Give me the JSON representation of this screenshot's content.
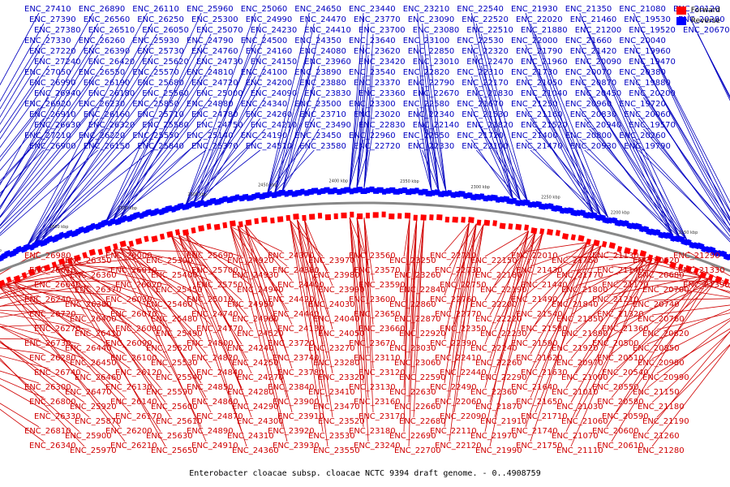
{
  "caption": "Enterobacter cloacae subsp. cloacae NCTC 9394 draft genome. - 0..4908759",
  "legend": [
    {
      "name": "Forward",
      "color": "#ff0000"
    },
    {
      "name": "Reverse",
      "color": "#0000ff"
    }
  ],
  "ticks": [
    "2000 kbp",
    "2050 kbp",
    "2100 kbp",
    "2150 kbp",
    "2200 kbp",
    "2250 kbp",
    "2300 kbp",
    "2350 kbp",
    "2400 kbp",
    "2450 kbp",
    "2500 kbp",
    "2550 kbp",
    "2600 kbp",
    "2650 kbp",
    "2700 kbp",
    "2750 kbp"
  ],
  "reverse_labels": [
    "ENC_27410",
    "ENC_27390",
    "ENC_27380",
    "ENC_27330",
    "ENC_27220",
    "ENC_27240",
    "ENC_27050",
    "ENC_26990",
    "ENC_26940",
    "ENC_26920",
    "ENC_26910",
    "ENC_26630",
    "ENC_27210",
    "ENC_26900",
    "ENC_26890",
    "ENC_26560",
    "ENC_26510",
    "ENC_26260",
    "ENC_26390",
    "ENC_26420",
    "ENC_26550",
    "ENC_26190",
    "ENC_26180",
    "ENC_26230",
    "ENC_26160",
    "ENC_26320",
    "ENC_26220",
    "ENC_26150",
    "ENC_26110",
    "ENC_26250",
    "ENC_26050",
    "ENC_25930",
    "ENC_25730",
    "ENC_25620",
    "ENC_25570",
    "ENC_25680",
    "ENC_25560",
    "ENC_25850",
    "ENC_25710",
    "ENC_25580",
    "ENC_25550",
    "ENC_25840",
    "ENC_25960",
    "ENC_25300",
    "ENC_25070",
    "ENC_24790",
    "ENC_24760",
    "ENC_24730",
    "ENC_24810",
    "ENC_24720",
    "ENC_25000",
    "ENC_24880",
    "ENC_24780",
    "ENC_24750",
    "ENC_25140",
    "ENC_25370",
    "ENC_25060",
    "ENC_24990",
    "ENC_24230",
    "ENC_24500",
    "ENC_24160",
    "ENC_24150",
    "ENC_24100",
    "ENC_24200",
    "ENC_24090",
    "ENC_24340",
    "ENC_24260",
    "ENC_24210",
    "ENC_24190",
    "ENC_24510",
    "ENC_24650",
    "ENC_24470",
    "ENC_24410",
    "ENC_24350",
    "ENC_24080",
    "ENC_23960",
    "ENC_23890",
    "ENC_23880",
    "ENC_23830",
    "ENC_23500",
    "ENC_23710",
    "ENC_23490",
    "ENC_23450",
    "ENC_23580",
    "ENC_23440",
    "ENC_23770",
    "ENC_23700",
    "ENC_23640",
    "ENC_23620",
    "ENC_23420",
    "ENC_23540",
    "ENC_23370",
    "ENC_23360",
    "ENC_23300",
    "ENC_23020",
    "ENC_22830",
    "ENC_22960",
    "ENC_22720",
    "ENC_23210",
    "ENC_23090",
    "ENC_23080",
    "ENC_23100",
    "ENC_22850",
    "ENC_23010",
    "ENC_22820",
    "ENC_22790",
    "ENC_22670",
    "ENC_22580",
    "ENC_22340",
    "ENC_22140",
    "ENC_22550",
    "ENC_22330",
    "ENC_22540",
    "ENC_22520",
    "ENC_22510",
    "ENC_22530",
    "ENC_22320",
    "ENC_22470",
    "ENC_22310",
    "ENC_22170",
    "ENC_21830",
    "ENC_21670",
    "ENC_21530",
    "ENC_21820",
    "ENC_21720",
    "ENC_22100",
    "ENC_21930",
    "ENC_22020",
    "ENC_21880",
    "ENC_22000",
    "ENC_21790",
    "ENC_21960",
    "ENC_21730",
    "ENC_21050",
    "ENC_21040",
    "ENC_21250",
    "ENC_21160",
    "ENC_21520",
    "ENC_21400",
    "ENC_21470",
    "ENC_21350",
    "ENC_21460",
    "ENC_21200",
    "ENC_21660",
    "ENC_21420",
    "ENC_20090",
    "ENC_20070",
    "ENC_20870",
    "ENC_20450",
    "ENC_20960",
    "ENC_20830",
    "ENC_20940",
    "ENC_20800",
    "ENC_20930",
    "ENC_21080",
    "ENC_19530",
    "ENC_19520",
    "ENC_20040",
    "ENC_19960",
    "ENC_19470",
    "ENC_20380",
    "ENC_19880",
    "ENC_20200",
    "ENC_19720",
    "ENC_20060",
    "ENC_19570",
    "ENC_20260",
    "ENC_19790",
    "ENC_20120",
    "ENC_20280",
    "ENC_20670"
  ],
  "forward_labels": [
    "ENC_26980",
    "ENC_26610",
    "ENC_26640",
    "ENC_26240",
    "ENC_26720",
    "ENC_26270",
    "ENC_26730",
    "ENC_26280",
    "ENC_26740",
    "ENC_26300",
    "ENC_26800",
    "ENC_26330",
    "ENC_26810",
    "ENC_26340",
    "ENC_26350",
    "ENC_26360",
    "ENC_26370",
    "ENC_26380",
    "ENC_26400",
    "ENC_26410",
    "ENC_26440",
    "ENC_26450",
    "ENC_26460",
    "ENC_26470",
    "ENC_25920",
    "ENC_25870",
    "ENC_25900",
    "ENC_25970",
    "ENC_26000",
    "ENC_26010",
    "ENC_26020",
    "ENC_26030",
    "ENC_26070",
    "ENC_26080",
    "ENC_26090",
    "ENC_26100",
    "ENC_26120",
    "ENC_26130",
    "ENC_26140",
    "ENC_26170",
    "ENC_26200",
    "ENC_26210",
    "ENC_25390",
    "ENC_25400",
    "ENC_25450",
    "ENC_25460",
    "ENC_25480",
    "ENC_25490",
    "ENC_25520",
    "ENC_25530",
    "ENC_25540",
    "ENC_25590",
    "ENC_25600",
    "ENC_25610",
    "ENC_25630",
    "ENC_25650",
    "ENC_25690",
    "ENC_25700",
    "ENC_25750",
    "ENC_25010",
    "ENC_24740",
    "ENC_24770",
    "ENC_24800",
    "ENC_24820",
    "ENC_24840",
    "ENC_24850",
    "ENC_24860",
    "ENC_24870",
    "ENC_24890",
    "ENC_24910",
    "ENC_24920",
    "ENC_24930",
    "ENC_24940",
    "ENC_24950",
    "ENC_24960",
    "ENC_24520",
    "ENC_24240",
    "ENC_24250",
    "ENC_24270",
    "ENC_24280",
    "ENC_24290",
    "ENC_24300",
    "ENC_24310",
    "ENC_24360",
    "ENC_24370",
    "ENC_24380",
    "ENC_24400",
    "ENC_24420",
    "ENC_24440",
    "ENC_24130",
    "ENC_23720",
    "ENC_23740",
    "ENC_23780",
    "ENC_23840",
    "ENC_23900",
    "ENC_23910",
    "ENC_23920",
    "ENC_23930",
    "ENC_23970",
    "ENC_23980",
    "ENC_23990",
    "ENC_24030",
    "ENC_24040",
    "ENC_24050",
    "ENC_23270",
    "ENC_23280",
    "ENC_23320",
    "ENC_23410",
    "ENC_23470",
    "ENC_23520",
    "ENC_23530",
    "ENC_23550",
    "ENC_23560",
    "ENC_23570",
    "ENC_23590",
    "ENC_23600",
    "ENC_23650",
    "ENC_23660",
    "ENC_23670",
    "ENC_23110",
    "ENC_23120",
    "ENC_23130",
    "ENC_23160",
    "ENC_23170",
    "ENC_23180",
    "ENC_23240",
    "ENC_23250",
    "ENC_23260",
    "ENC_22840",
    "ENC_22860",
    "ENC_22870",
    "ENC_22920",
    "ENC_23030",
    "ENC_23060",
    "ENC_22590",
    "ENC_22630",
    "ENC_22660",
    "ENC_22680",
    "ENC_22690",
    "ENC_22700",
    "ENC_22710",
    "ENC_22730",
    "ENC_22750",
    "ENC_22760",
    "ENC_22770",
    "ENC_22350",
    "ENC_22390",
    "ENC_22410",
    "ENC_22440",
    "ENC_22490",
    "ENC_22060",
    "ENC_22090",
    "ENC_22110",
    "ENC_22120",
    "ENC_22150",
    "ENC_22180",
    "ENC_22190",
    "ENC_22200",
    "ENC_22220",
    "ENC_22230",
    "ENC_22240",
    "ENC_22260",
    "ENC_22290",
    "ENC_22360",
    "ENC_21870",
    "ENC_21910",
    "ENC_21970",
    "ENC_21990",
    "ENC_22010",
    "ENC_21430",
    "ENC_21440",
    "ENC_21490",
    "ENC_21540",
    "ENC_21580",
    "ENC_21590",
    "ENC_21620",
    "ENC_21630",
    "ENC_21640",
    "ENC_21650",
    "ENC_21710",
    "ENC_21740",
    "ENC_21750",
    "ENC_21760",
    "ENC_21770",
    "ENC_21800",
    "ENC_21840",
    "ENC_21850",
    "ENC_21890",
    "ENC_21920",
    "ENC_20970",
    "ENC_21000",
    "ENC_21010",
    "ENC_21030",
    "ENC_21060",
    "ENC_21070",
    "ENC_21110",
    "ENC_21130",
    "ENC_21140",
    "ENC_21170",
    "ENC_21210",
    "ENC_21320",
    "ENC_21360",
    "ENC_20500",
    "ENC_20510",
    "ENC_20540",
    "ENC_20550",
    "ENC_20580",
    "ENC_20590",
    "ENC_20600",
    "ENC_20610",
    "ENC_20620",
    "ENC_20680",
    "ENC_20700",
    "ENC_20740",
    "ENC_20760",
    "ENC_20820",
    "ENC_20850",
    "ENC_20980",
    "ENC_20990",
    "ENC_21150",
    "ENC_21180",
    "ENC_21190",
    "ENC_21260",
    "ENC_21280",
    "ENC_21290",
    "ENC_21330",
    "ENC_21390"
  ]
}
